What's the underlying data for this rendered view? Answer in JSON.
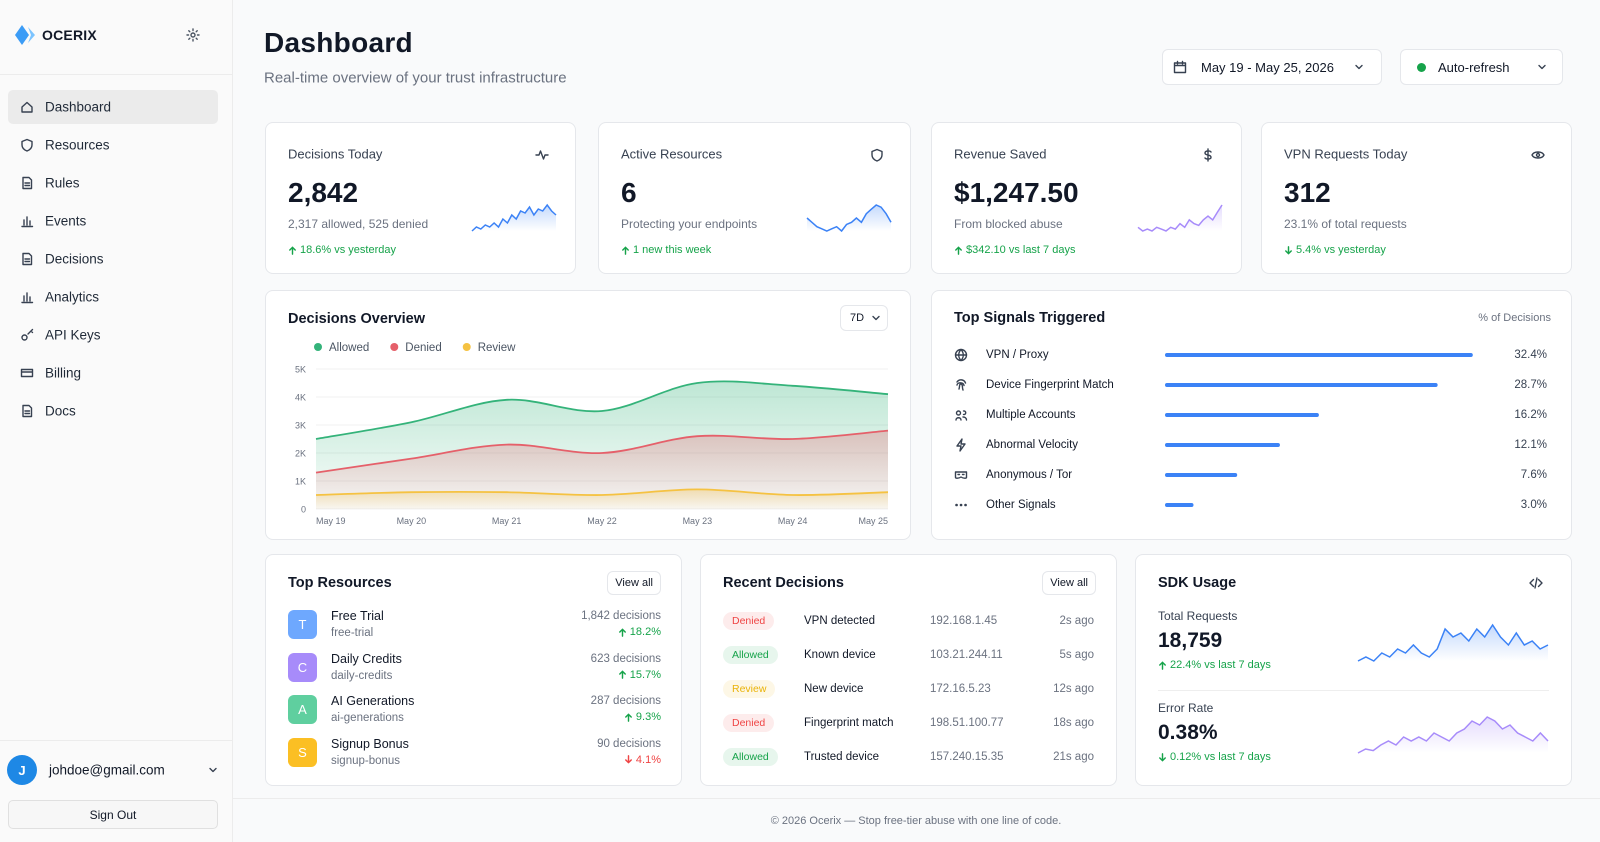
{
  "sidebar": {
    "brand": "OCERIX",
    "nav": [
      "Dashboard",
      "Resources",
      "Rules",
      "Events",
      "Decisions",
      "Analytics",
      "API Keys",
      "Billing",
      "Docs"
    ],
    "active": 0,
    "user": {
      "initial": "J",
      "email": "johdoe@gmail.com"
    },
    "sign_out": "Sign Out"
  },
  "header": {
    "title": "Dashboard",
    "subtitle": "Real-time overview of your trust infrastructure",
    "date_range": "May 19 - May 25, 2026",
    "refresh": "Auto-refresh"
  },
  "stats": [
    {
      "title": "Decisions Today",
      "value": "2,842",
      "detail": "2,317 allowed, 525 denied",
      "change": "18.6% vs yesterday",
      "direction": "up",
      "spark_color": "#3b82f6",
      "spark": [
        2,
        3,
        2.5,
        3.5,
        3,
        4,
        3,
        5,
        4,
        6,
        5,
        7,
        6.5,
        8,
        6,
        7.5,
        7,
        8.5,
        7,
        6
      ]
    },
    {
      "title": "Active Resources",
      "value": "6",
      "detail": "Protecting your endpoints",
      "change": "1 new this week",
      "direction": "up",
      "spark_color": "#3b82f6",
      "spark": [
        6,
        5,
        4,
        3.5,
        3,
        3.5,
        4,
        3,
        4.5,
        5,
        6,
        5,
        7,
        8,
        9,
        8.5,
        7,
        5
      ]
    },
    {
      "title": "Revenue Saved",
      "value": "$1,247.50",
      "detail": "From blocked abuse",
      "change": "$342.10 vs last 7 days",
      "direction": "up",
      "spark_color": "#a78bfa",
      "spark": [
        3,
        2,
        2.5,
        2,
        3,
        2.5,
        2,
        3,
        2.5,
        4,
        3,
        5,
        4,
        3.5,
        5,
        6,
        5,
        7,
        9
      ]
    },
    {
      "title": "VPN Requests Today",
      "value": "312",
      "detail": "23.1% of total requests",
      "change": "5.4% vs yesterday",
      "direction": "down"
    }
  ],
  "chart_data": {
    "type": "area",
    "title": "Decisions Overview",
    "range": "7D",
    "categories": [
      "May 19",
      "May 20",
      "May 21",
      "May 22",
      "May 23",
      "May 24",
      "May 25"
    ],
    "series": [
      {
        "name": "Allowed",
        "color": "#34b37a",
        "values": [
          2500,
          3100,
          3900,
          3500,
          4500,
          4400,
          4100
        ]
      },
      {
        "name": "Denied",
        "color": "#e5606a",
        "values": [
          1300,
          1800,
          2300,
          2000,
          2600,
          2500,
          2800
        ]
      },
      {
        "name": "Review",
        "color": "#f5c242",
        "values": [
          500,
          600,
          600,
          500,
          700,
          500,
          600
        ]
      }
    ],
    "ylim": [
      0,
      5000
    ],
    "yticks": [
      0,
      {
        "value": 1000,
        "label": "1K"
      },
      {
        "value": 2000,
        "label": "2K"
      },
      {
        "value": 3000,
        "label": "3K"
      },
      {
        "value": 4000,
        "label": "4K"
      },
      {
        "value": 5000,
        "label": "5K"
      }
    ]
  },
  "signals": {
    "title": "Top Signals Triggered",
    "axis_label": "% of Decisions",
    "names": [
      "VPN / Proxy",
      "Device Fingerprint Match",
      "Multiple Accounts",
      "Abnormal Velocity",
      "Anonymous / Tor",
      "Other Signals"
    ],
    "values": [
      32.4,
      28.7,
      16.2,
      12.1,
      7.6,
      3.0
    ],
    "value_labels": [
      "32.4%",
      "28.7%",
      "16.2%",
      "12.1%",
      "7.6%",
      "3.0%"
    ],
    "color": "#3b82f6"
  },
  "resources": {
    "title": "Top Resources",
    "action": "View all",
    "items": [
      {
        "initial": "T",
        "name": "Free Trial",
        "slug": "free-trial",
        "decisions": "1,842 decisions",
        "change": "18.2%",
        "direction": "up",
        "color": "#6ea8fe",
        "change_color": "#16a34a"
      },
      {
        "initial": "C",
        "name": "Daily Credits",
        "slug": "daily-credits",
        "decisions": "623 decisions",
        "change": "15.7%",
        "direction": "up",
        "color": "#a78bfa",
        "change_color": "#16a34a"
      },
      {
        "initial": "A",
        "name": "AI Generations",
        "slug": "ai-generations",
        "decisions": "287 decisions",
        "change": "9.3%",
        "direction": "up",
        "color": "#5fcf9f",
        "change_color": "#16a34a"
      },
      {
        "initial": "S",
        "name": "Signup Bonus",
        "slug": "signup-bonus",
        "decisions": "90 decisions",
        "change": "4.1%",
        "direction": "down",
        "color": "#fbbf24",
        "change_color": "#ef4444"
      }
    ]
  },
  "recent": {
    "title": "Recent Decisions",
    "action": "View all",
    "rows": [
      {
        "status": "Denied",
        "color": "#ef4444",
        "reason": "VPN detected",
        "ip": "192.168.1.45",
        "time": "2s ago"
      },
      {
        "status": "Allowed",
        "color": "#16a34a",
        "reason": "Known device",
        "ip": "103.21.244.11",
        "time": "5s ago"
      },
      {
        "status": "Review",
        "color": "#eab308",
        "reason": "New device",
        "ip": "172.16.5.23",
        "time": "12s ago"
      },
      {
        "status": "Denied",
        "color": "#ef4444",
        "reason": "Fingerprint match",
        "ip": "198.51.100.77",
        "time": "18s ago"
      },
      {
        "status": "Allowed",
        "color": "#16a34a",
        "reason": "Trusted device",
        "ip": "157.240.15.35",
        "time": "21s ago"
      }
    ]
  },
  "sdk": {
    "title": "SDK Usage",
    "metrics": [
      {
        "label": "Total Requests",
        "value": "18,759",
        "change": "22.4% vs last 7 days",
        "direction": "up",
        "color": "#3b82f6",
        "spark": [
          3,
          3.5,
          3,
          4,
          3.5,
          4.5,
          4,
          5,
          4,
          3.5,
          4.5,
          7,
          6,
          6.5,
          5.5,
          7,
          6,
          7.5,
          6,
          5,
          6.5,
          5,
          5.5,
          4.5,
          5
        ]
      },
      {
        "label": "Error Rate",
        "value": "0.38%",
        "change": "0.12% vs last 7 days",
        "direction": "down",
        "color": "#a78bfa",
        "spark": [
          2,
          2.5,
          2.3,
          3,
          3.5,
          3,
          4,
          3.5,
          4,
          3.5,
          4.5,
          4,
          3.5,
          4.5,
          5,
          6,
          5.5,
          6.5,
          6,
          5,
          5.5,
          4.5,
          4,
          3.5,
          4.5,
          3.5
        ]
      }
    ]
  },
  "footer": "© 2026 Ocerix — Stop free-tier abuse with one line of code."
}
